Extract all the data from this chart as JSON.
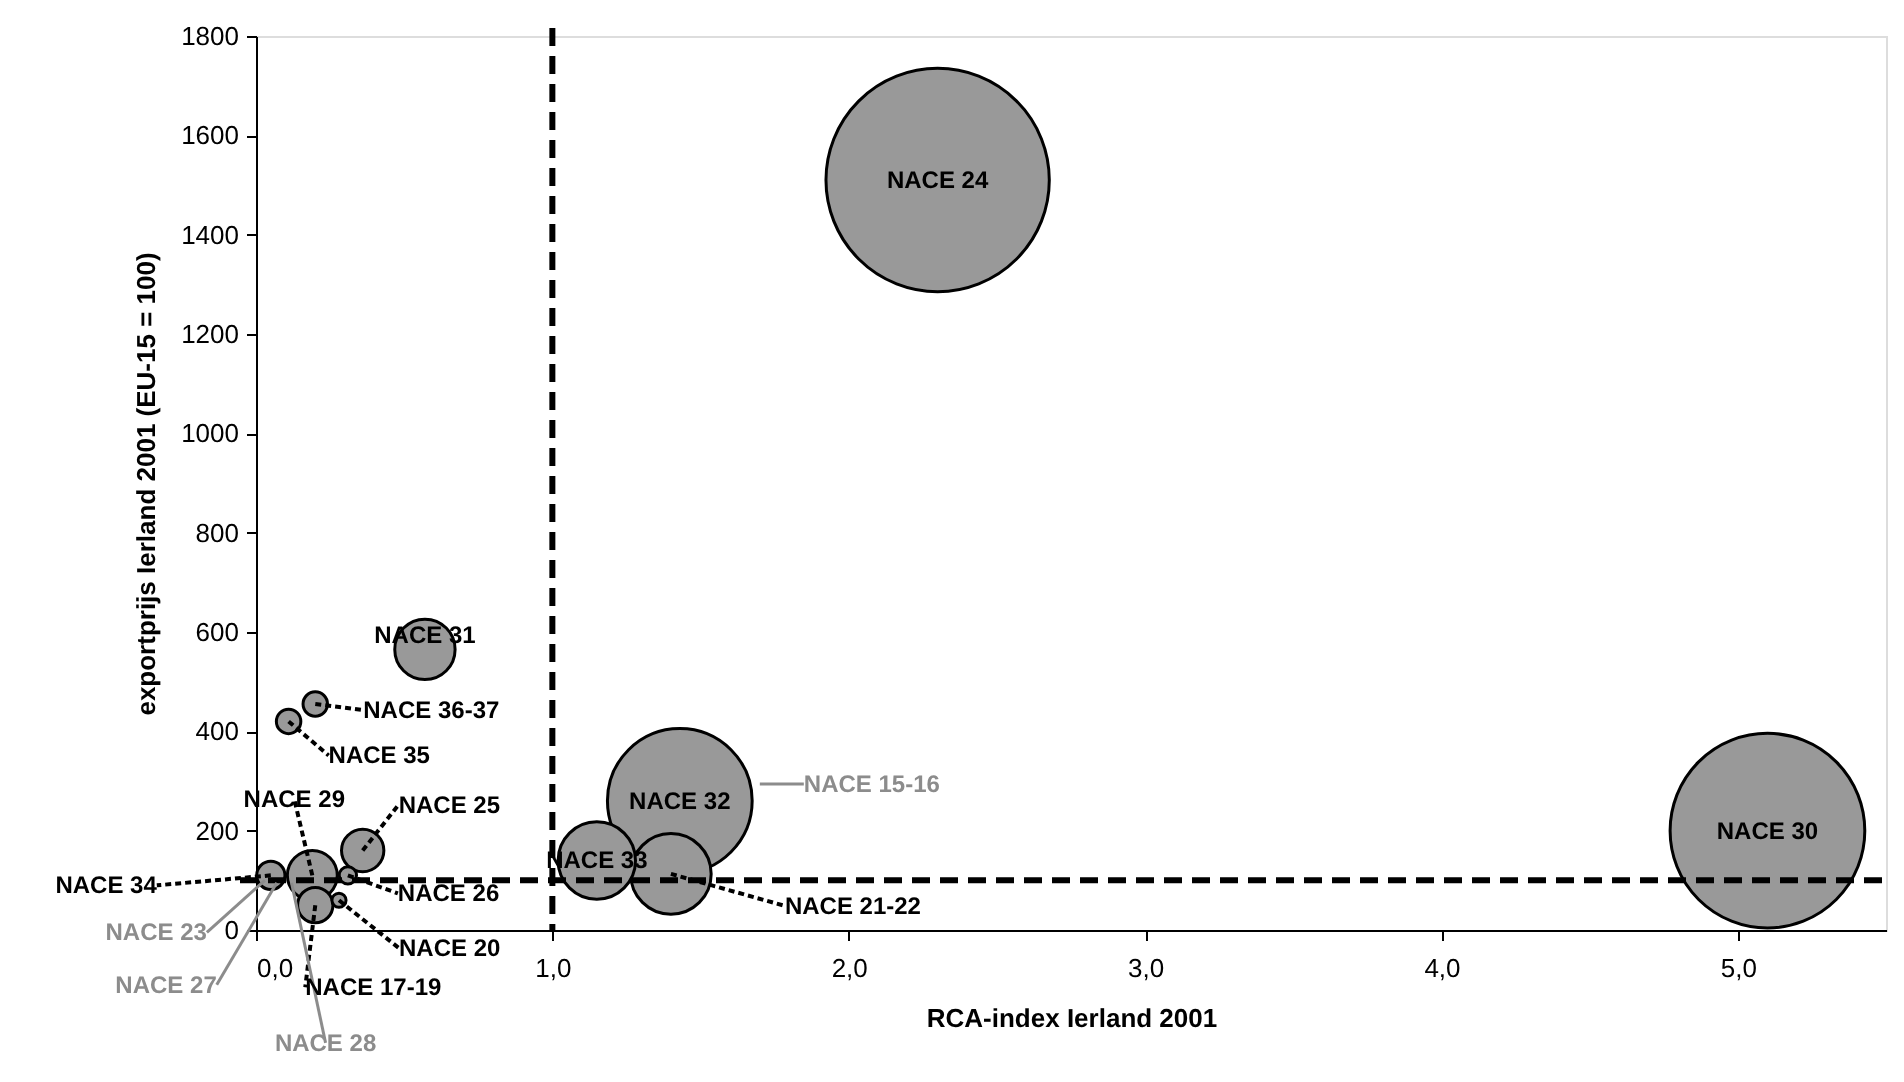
{
  "chart_data": {
    "type": "bubble",
    "xlabel": "RCA-index Ierland 2001",
    "ylabel": "exportprijs Ierland 2001 (EU-15 = 100)",
    "xlim": [
      0,
      5.5
    ],
    "ylim": [
      0,
      1800
    ],
    "xticks": [
      {
        "value": 0,
        "label": "0,0"
      },
      {
        "value": 1,
        "label": "1,0"
      },
      {
        "value": 2,
        "label": "2,0"
      },
      {
        "value": 3,
        "label": "3,0"
      },
      {
        "value": 4,
        "label": "4,0"
      },
      {
        "value": 5,
        "label": "5,0"
      }
    ],
    "yticks": [
      0,
      200,
      400,
      600,
      800,
      1000,
      1200,
      1400,
      1600,
      1800
    ],
    "grid": false,
    "series": [
      {
        "color": "#999999",
        "x": [
          2.3,
          5.1,
          1.43,
          1.15,
          1.4,
          0.57,
          0.2,
          0.11,
          0.36,
          0.19,
          0.2,
          0.05,
          0.31,
          0.28
        ],
        "values": [
          1510,
          200,
          260,
          140,
          113,
          565,
          455,
          420,
          160,
          110,
          50,
          110,
          110,
          60
        ],
        "sizes": [
          1.0,
          0.76,
          0.42,
          0.12,
          0.13,
          0.073,
          0.012,
          0.012,
          0.036,
          0.05,
          0.025,
          0.016,
          0.006,
          0.004
        ]
      }
    ],
    "ref_lines": [
      {
        "axis": "x",
        "value": 1,
        "color": "#000000",
        "line_style": "dashed"
      },
      {
        "axis": "y",
        "value": 100,
        "color": "#000000",
        "line_style": "dashed"
      }
    ],
    "annotations": [
      {
        "text": "NACE 24",
        "x": 2.3,
        "y": 1510
      },
      {
        "text": "NACE 30",
        "x": 5.1,
        "y": 200
      },
      {
        "text": "NACE 32",
        "x": 1.43,
        "y": 260
      },
      {
        "text": "NACE 33",
        "x": 1.15,
        "y": 140
      },
      {
        "text": "NACE 21-22",
        "x": 1.4,
        "y": 113
      },
      {
        "text": "NACE 31",
        "x": 0.57,
        "y": 565
      },
      {
        "text": "NACE 36-37",
        "x": 0.2,
        "y": 455
      },
      {
        "text": "NACE 35",
        "x": 0.11,
        "y": 420
      },
      {
        "text": "NACE 25",
        "x": 0.36,
        "y": 160
      },
      {
        "text": "NACE 29",
        "x": 0.19,
        "y": 110
      },
      {
        "text": "NACE 17-19",
        "x": 0.2,
        "y": 50
      },
      {
        "text": "NACE 34",
        "x": 0.05,
        "y": 110
      },
      {
        "text": "NACE 26",
        "x": 0.31,
        "y": 110
      },
      {
        "text": "NACE 20",
        "x": 0.28,
        "y": 60
      },
      {
        "text": "NACE 23",
        "x": 0.03,
        "y": 100
      },
      {
        "text": "NACE 27",
        "x": 0.07,
        "y": 95
      },
      {
        "text": "NACE 28",
        "x": 0.12,
        "y": 95
      },
      {
        "text": "NACE 15-16",
        "x": 1.7,
        "y": 294
      }
    ]
  }
}
